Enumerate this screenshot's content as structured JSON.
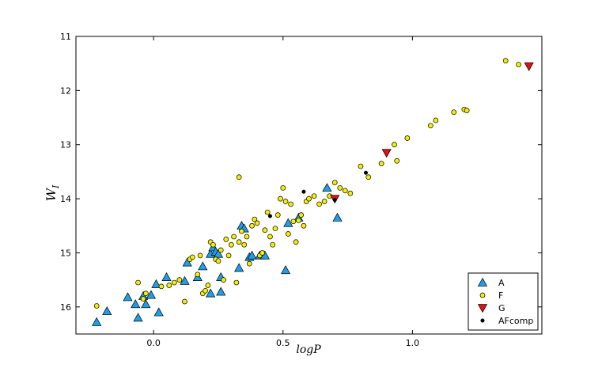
{
  "chart_data": {
    "type": "scatter",
    "xlabel": "logP",
    "ylabel_main": "W",
    "ylabel_sub": "I",
    "xlim": [
      -0.3,
      1.5
    ],
    "ylim": [
      16.5,
      11.0
    ],
    "y_inverted": true,
    "grid": false,
    "legend_position": "bottom-right",
    "x_ticks": [
      0.0,
      0.5,
      1.0
    ],
    "x_tick_labels": [
      "0.0",
      "0.5",
      "1.0"
    ],
    "y_ticks": [
      11,
      12,
      13,
      14,
      15,
      16
    ],
    "y_tick_labels": [
      "11",
      "12",
      "13",
      "14",
      "15",
      "16"
    ],
    "series": [
      {
        "name": "A",
        "marker": "triangle-up",
        "color": "#1f9fe6",
        "points": [
          [
            -0.22,
            16.28
          ],
          [
            -0.18,
            16.08
          ],
          [
            -0.1,
            15.82
          ],
          [
            -0.07,
            15.95
          ],
          [
            -0.06,
            16.2
          ],
          [
            -0.04,
            15.8
          ],
          [
            -0.03,
            15.95
          ],
          [
            -0.01,
            15.78
          ],
          [
            0.01,
            15.58
          ],
          [
            0.02,
            16.1
          ],
          [
            0.05,
            15.45
          ],
          [
            0.12,
            15.52
          ],
          [
            0.13,
            15.18
          ],
          [
            0.17,
            15.45
          ],
          [
            0.19,
            15.25
          ],
          [
            0.22,
            15.02
          ],
          [
            0.22,
            15.75
          ],
          [
            0.23,
            14.9
          ],
          [
            0.24,
            14.98
          ],
          [
            0.25,
            15.02
          ],
          [
            0.26,
            15.72
          ],
          [
            0.26,
            15.45
          ],
          [
            0.33,
            15.28
          ],
          [
            0.34,
            14.5
          ],
          [
            0.35,
            14.55
          ],
          [
            0.37,
            15.08
          ],
          [
            0.38,
            15.05
          ],
          [
            0.41,
            15.05
          ],
          [
            0.43,
            15.05
          ],
          [
            0.51,
            15.32
          ],
          [
            0.52,
            14.45
          ],
          [
            0.56,
            14.35
          ],
          [
            0.67,
            13.8
          ],
          [
            0.71,
            14.35
          ]
        ]
      },
      {
        "name": "F",
        "marker": "circle",
        "color": "#f5ef00",
        "points": [
          [
            -0.22,
            15.98
          ],
          [
            -0.06,
            15.55
          ],
          [
            -0.04,
            15.85
          ],
          [
            -0.03,
            15.75
          ],
          [
            0.03,
            15.62
          ],
          [
            0.06,
            15.6
          ],
          [
            0.08,
            15.55
          ],
          [
            0.1,
            15.5
          ],
          [
            0.12,
            15.9
          ],
          [
            0.14,
            15.12
          ],
          [
            0.15,
            15.08
          ],
          [
            0.17,
            15.4
          ],
          [
            0.18,
            15.05
          ],
          [
            0.19,
            15.75
          ],
          [
            0.2,
            15.7
          ],
          [
            0.21,
            15.6
          ],
          [
            0.22,
            14.8
          ],
          [
            0.23,
            14.85
          ],
          [
            0.24,
            15.12
          ],
          [
            0.25,
            15.15
          ],
          [
            0.26,
            14.95
          ],
          [
            0.27,
            15.5
          ],
          [
            0.28,
            14.75
          ],
          [
            0.29,
            15.05
          ],
          [
            0.3,
            14.85
          ],
          [
            0.31,
            14.7
          ],
          [
            0.32,
            15.55
          ],
          [
            0.33,
            14.8
          ],
          [
            0.33,
            13.6
          ],
          [
            0.34,
            14.6
          ],
          [
            0.35,
            14.85
          ],
          [
            0.36,
            14.7
          ],
          [
            0.37,
            15.2
          ],
          [
            0.38,
            14.5
          ],
          [
            0.39,
            14.38
          ],
          [
            0.4,
            14.45
          ],
          [
            0.41,
            15.05
          ],
          [
            0.42,
            15.0
          ],
          [
            0.43,
            14.58
          ],
          [
            0.44,
            14.25
          ],
          [
            0.45,
            14.7
          ],
          [
            0.46,
            14.85
          ],
          [
            0.47,
            14.55
          ],
          [
            0.48,
            14.3
          ],
          [
            0.49,
            14.0
          ],
          [
            0.5,
            13.8
          ],
          [
            0.51,
            14.05
          ],
          [
            0.52,
            14.65
          ],
          [
            0.53,
            14.1
          ],
          [
            0.54,
            14.42
          ],
          [
            0.55,
            14.8
          ],
          [
            0.56,
            14.4
          ],
          [
            0.57,
            14.3
          ],
          [
            0.58,
            14.5
          ],
          [
            0.59,
            14.05
          ],
          [
            0.6,
            14.0
          ],
          [
            0.62,
            13.95
          ],
          [
            0.64,
            14.1
          ],
          [
            0.66,
            14.05
          ],
          [
            0.68,
            13.95
          ],
          [
            0.7,
            13.7
          ],
          [
            0.72,
            13.8
          ],
          [
            0.74,
            13.85
          ],
          [
            0.76,
            13.9
          ],
          [
            0.8,
            13.4
          ],
          [
            0.83,
            13.6
          ],
          [
            0.88,
            13.35
          ],
          [
            0.93,
            13.0
          ],
          [
            0.94,
            13.3
          ],
          [
            0.98,
            12.88
          ],
          [
            1.07,
            12.65
          ],
          [
            1.09,
            12.55
          ],
          [
            1.16,
            12.4
          ],
          [
            1.2,
            12.35
          ],
          [
            1.21,
            12.37
          ],
          [
            1.36,
            11.45
          ],
          [
            1.41,
            11.52
          ]
        ]
      },
      {
        "name": "G",
        "marker": "triangle-down",
        "color": "#e01010",
        "points": [
          [
            0.7,
            14.0
          ],
          [
            0.9,
            13.15
          ],
          [
            1.45,
            11.55
          ]
        ]
      },
      {
        "name": "AFcomp",
        "marker": "dot",
        "color": "#000000",
        "points": [
          [
            0.45,
            14.32
          ],
          [
            0.58,
            13.87
          ],
          [
            0.7,
            14.02
          ],
          [
            0.82,
            13.52
          ]
        ]
      }
    ]
  }
}
